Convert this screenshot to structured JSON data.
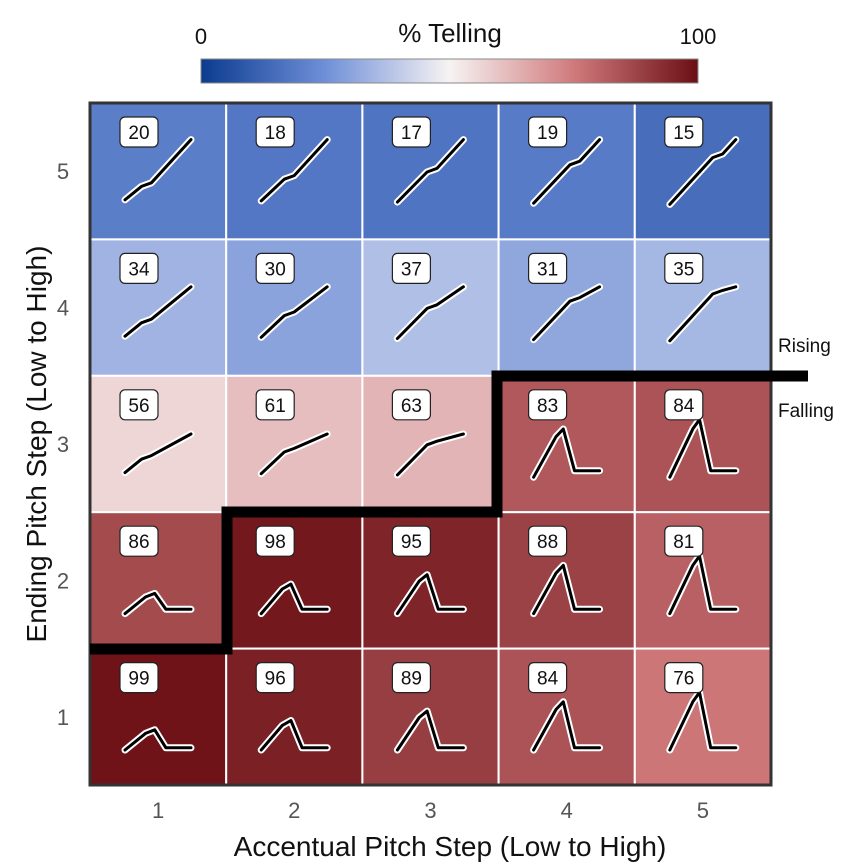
{
  "chart_data": {
    "type": "heatmap",
    "xlabel": "Accentual Pitch Step (Low to High)",
    "ylabel": "Ending Pitch Step (Low to High)",
    "x_ticks": [
      "1",
      "2",
      "3",
      "4",
      "5"
    ],
    "y_ticks": [
      "1",
      "2",
      "3",
      "4",
      "5"
    ],
    "colorbar": {
      "title": "% Telling",
      "min_label": "0",
      "max_label": "100",
      "min": 0,
      "max": 100,
      "colormap": "coolwarm (blue to red)",
      "low_color": "#0b3b8f",
      "mid_color": "#f7f3f3",
      "high_color": "#6b0f14"
    },
    "rows": [
      {
        "ending_step": 5,
        "values": [
          20,
          18,
          17,
          19,
          15
        ]
      },
      {
        "ending_step": 4,
        "values": [
          34,
          30,
          37,
          31,
          35
        ]
      },
      {
        "ending_step": 3,
        "values": [
          56,
          61,
          63,
          83,
          84
        ]
      },
      {
        "ending_step": 2,
        "values": [
          86,
          98,
          95,
          88,
          81
        ]
      },
      {
        "ending_step": 1,
        "values": [
          99,
          96,
          89,
          84,
          76
        ]
      }
    ],
    "cell_glyph": "pitch-contour sketch in each cell",
    "boundary": {
      "upper_label": "Rising",
      "lower_label": "Falling"
    },
    "grid": true
  }
}
